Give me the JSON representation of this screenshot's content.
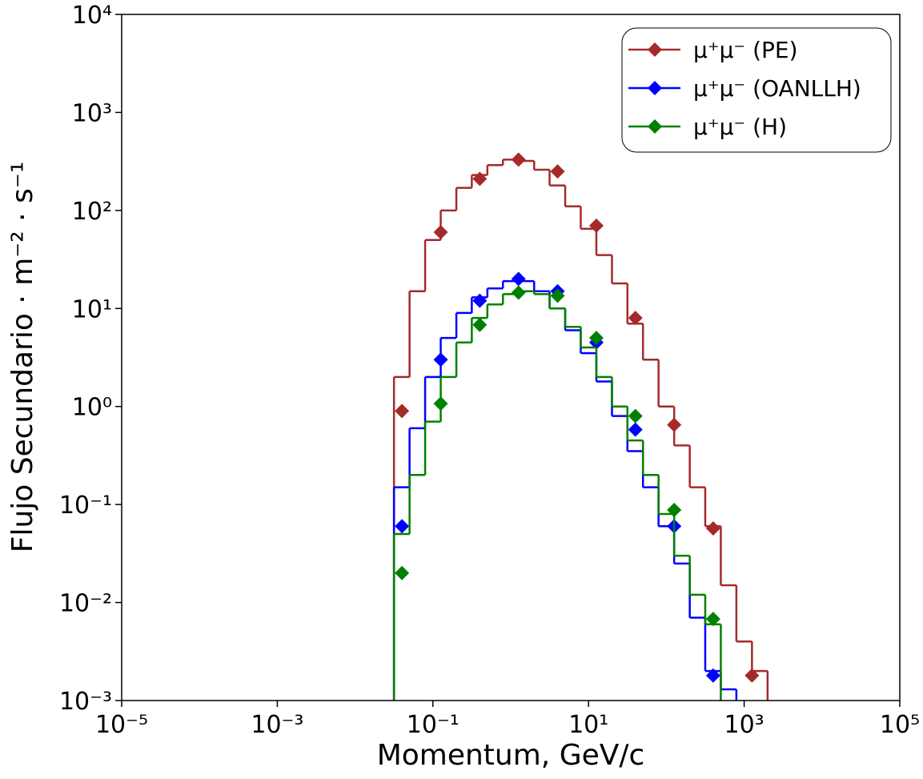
{
  "chart_data": {
    "type": "histogram",
    "x_label": "Momentum, GeV/c",
    "y_label": "Flujo Secundario · m⁻² · s⁻¹",
    "x_log": true,
    "y_log": true,
    "grid": false,
    "legend": "upper right",
    "xlim": [
      1e-05,
      100000
    ],
    "ylim": [
      0.001,
      10000
    ],
    "xticks": [
      {
        "value": 1e-05,
        "label": "10⁻⁵"
      },
      {
        "value": 0.001,
        "label": "10⁻³"
      },
      {
        "value": 0.1,
        "label": "10⁻¹"
      },
      {
        "value": 10,
        "label": "10¹"
      },
      {
        "value": 1000,
        "label": "10³"
      },
      {
        "value": 100000,
        "label": "10⁵"
      }
    ],
    "yticks": [
      {
        "value": 0.001,
        "label": "10⁻³"
      },
      {
        "value": 0.01,
        "label": "10⁻²"
      },
      {
        "value": 0.1,
        "label": "10⁻¹"
      },
      {
        "value": 1,
        "label": "10⁰"
      },
      {
        "value": 10,
        "label": "10¹"
      },
      {
        "value": 100,
        "label": "10²"
      },
      {
        "value": 1000,
        "label": "10³"
      },
      {
        "value": 10000,
        "label": "10⁴"
      }
    ],
    "bins": [
      0.0316,
      0.0501,
      0.0794,
      0.126,
      0.2,
      0.316,
      0.501,
      0.794,
      1.26,
      2,
      3.16,
      5.01,
      7.94,
      12.6,
      20,
      31.6,
      50.1,
      79.4,
      126,
      200,
      316,
      501,
      794,
      1260,
      2000
    ],
    "marker_x": [
      0.04,
      0.126,
      0.4,
      1.26,
      4,
      12.6,
      40,
      126,
      400,
      1260
    ],
    "series": [
      {
        "name": "μ⁺μ⁻ (PE)",
        "color": "#a52a2a",
        "values": [
          2,
          15,
          50,
          100,
          170,
          230,
          290,
          330,
          320,
          260,
          180,
          110,
          65,
          35,
          18,
          7,
          3,
          1,
          0.4,
          0.15,
          0.06,
          0.015,
          0.004,
          0.002
        ],
        "marker_values": [
          0.9,
          60,
          210,
          330,
          250,
          70,
          8,
          0.65,
          0.057,
          0.0018
        ]
      },
      {
        "name": "μ⁺μ⁻ (OANLLH)",
        "color": "#0000ff",
        "values": [
          0.15,
          0.6,
          2,
          5,
          9,
          13,
          16,
          19,
          19,
          15,
          10,
          6,
          3.5,
          1.8,
          0.8,
          0.35,
          0.15,
          0.06,
          0.025,
          0.007,
          0.002,
          0.0013,
          null,
          null
        ],
        "marker_values": [
          0.06,
          3,
          12,
          20,
          15,
          4.5,
          0.58,
          0.06,
          0.0018,
          null
        ]
      },
      {
        "name": "μ⁺μ⁻ (H)",
        "color": "#008000",
        "values": [
          0.05,
          0.2,
          0.7,
          2,
          4.5,
          8,
          11,
          14,
          15,
          14,
          10,
          6.5,
          4,
          2,
          1,
          0.45,
          0.2,
          0.08,
          0.03,
          0.012,
          0.006,
          null,
          null,
          null
        ],
        "marker_values": [
          0.02,
          1.07,
          6.8,
          14.5,
          13.5,
          5,
          0.8,
          0.088,
          0.0068,
          null
        ]
      }
    ]
  }
}
